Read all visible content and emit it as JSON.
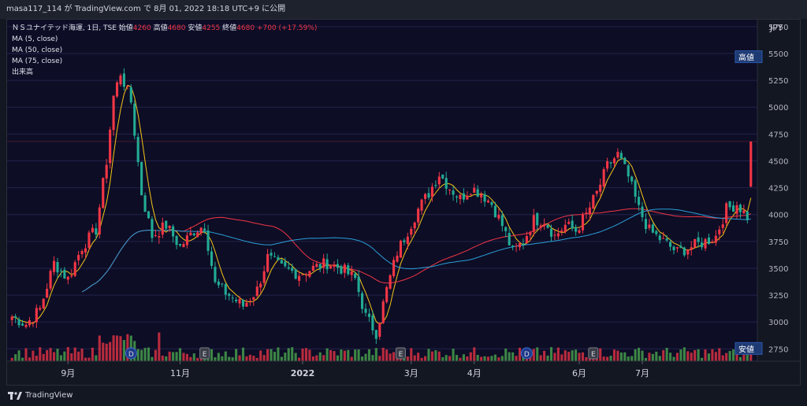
{
  "header": {
    "publish_text": "masa117_114 が TradingView.com で 8月 01, 2022 18:18 UTC+9 に公開"
  },
  "legend": {
    "symbol": "ＮＳユナイテッド海運, 1日, TSE",
    "open_label": "始値",
    "open_value": "4260",
    "high_label": "高値",
    "high_value": "4680",
    "low_label": "安値",
    "low_value": "4255",
    "close_label": "終値",
    "close_value": "4680",
    "change": "+700 (+17.59%)",
    "ma_lines": [
      "MA (5, close)",
      "MA (50, close)",
      "MA (75, close)"
    ],
    "volume_label": "出来高"
  },
  "footer": {
    "brand": "TradingView"
  },
  "colors": {
    "up": "#f23645",
    "down": "#22ab94",
    "background": "#0d0d26",
    "ma5": "#f5c518",
    "ma50": "#f23645",
    "ma75": "#2a9fd6",
    "vol_up": "#f23645",
    "vol_down": "#4caf50"
  },
  "chart_data": {
    "type": "candlestick",
    "currency": "JPY",
    "ylim": [
      2650,
      5800
    ],
    "y_ticks": [
      2750,
      3000,
      3250,
      3500,
      3750,
      4000,
      4250,
      4500,
      4750,
      5000,
      5250,
      5500,
      5750
    ],
    "x_ticks": [
      "9月",
      "11月",
      "2022",
      "3月",
      "4月",
      "6月",
      "7月"
    ],
    "badges": [
      {
        "text": "高値",
        "value": 5466
      },
      {
        "text": "安値",
        "value": 2750
      }
    ],
    "events": [
      {
        "type": "D",
        "index": 34
      },
      {
        "type": "E",
        "index": 55
      },
      {
        "type": "E",
        "index": 111
      },
      {
        "type": "D",
        "index": 147
      },
      {
        "type": "E",
        "index": 166
      }
    ],
    "last_close": 4680,
    "anchors": [
      [
        0,
        3050
      ],
      [
        4,
        2980
      ],
      [
        8,
        3120
      ],
      [
        12,
        3550
      ],
      [
        16,
        3400
      ],
      [
        20,
        3700
      ],
      [
        24,
        3860
      ],
      [
        27,
        4500
      ],
      [
        29,
        5100
      ],
      [
        31,
        5320
      ],
      [
        34,
        5050
      ],
      [
        37,
        4200
      ],
      [
        40,
        3800
      ],
      [
        44,
        3900
      ],
      [
        48,
        3700
      ],
      [
        52,
        3850
      ],
      [
        55,
        3900
      ],
      [
        58,
        3350
      ],
      [
        62,
        3250
      ],
      [
        66,
        3150
      ],
      [
        70,
        3300
      ],
      [
        73,
        3600
      ],
      [
        77,
        3500
      ],
      [
        82,
        3450
      ],
      [
        86,
        3500
      ],
      [
        90,
        3550
      ],
      [
        94,
        3500
      ],
      [
        98,
        3400
      ],
      [
        101,
        3050
      ],
      [
        104,
        2900
      ],
      [
        107,
        3300
      ],
      [
        110,
        3650
      ],
      [
        113,
        3850
      ],
      [
        116,
        4050
      ],
      [
        119,
        4200
      ],
      [
        122,
        4380
      ],
      [
        125,
        4250
      ],
      [
        128,
        4150
      ],
      [
        131,
        4250
      ],
      [
        134,
        4200
      ],
      [
        137,
        4100
      ],
      [
        140,
        3900
      ],
      [
        143,
        3650
      ],
      [
        146,
        3750
      ],
      [
        149,
        3950
      ],
      [
        152,
        3950
      ],
      [
        155,
        3800
      ],
      [
        158,
        3900
      ],
      [
        161,
        3850
      ],
      [
        164,
        4000
      ],
      [
        167,
        4200
      ],
      [
        170,
        4450
      ],
      [
        173,
        4560
      ],
      [
        176,
        4350
      ],
      [
        179,
        4050
      ],
      [
        182,
        3850
      ],
      [
        186,
        3750
      ],
      [
        190,
        3650
      ],
      [
        194,
        3700
      ],
      [
        198,
        3750
      ],
      [
        201,
        3800
      ],
      [
        204,
        4050
      ],
      [
        207,
        4100
      ],
      [
        210,
        3980
      ]
    ],
    "last_candle": {
      "open": 4260,
      "high": 4680,
      "low": 4255,
      "close": 4680
    },
    "series": [
      {
        "name": "MA (5, close)",
        "window": 5
      },
      {
        "name": "MA (50, close)",
        "window": 50
      },
      {
        "name": "MA (75, close)",
        "window": 75
      }
    ]
  }
}
